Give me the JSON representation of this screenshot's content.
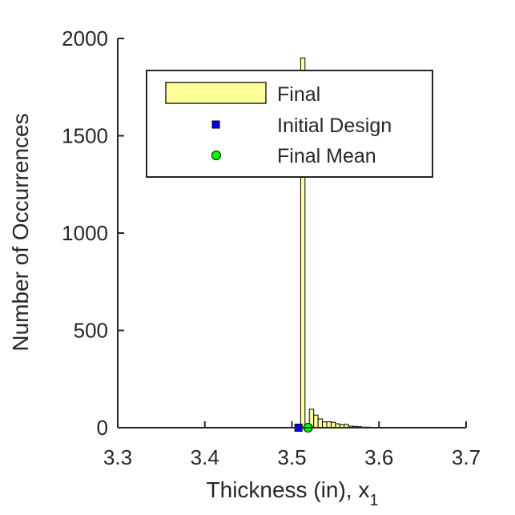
{
  "chart_data": {
    "type": "bar",
    "title": "",
    "xlabel": "Thickness (in), x",
    "xlabel_subscript": "1",
    "ylabel": "Number of Occurrences",
    "xlim": [
      3.3,
      3.7
    ],
    "ylim": [
      0,
      2000
    ],
    "xticks": [
      "3.3",
      "3.4",
      "3.5",
      "3.6",
      "3.7"
    ],
    "yticks": [
      "0",
      "500",
      "1000",
      "1500",
      "2000"
    ],
    "grid": false,
    "legend_position": "top",
    "bin_width": 0.005,
    "series": [
      {
        "name": "Final",
        "kind": "histogram",
        "color": "#ffff99",
        "edge_color": "#000000",
        "bins": [
          {
            "x": 3.5125,
            "count": 1900
          },
          {
            "x": 3.5175,
            "count": 15
          },
          {
            "x": 3.5225,
            "count": 95
          },
          {
            "x": 3.5275,
            "count": 65
          },
          {
            "x": 3.5325,
            "count": 45
          },
          {
            "x": 3.5375,
            "count": 30
          },
          {
            "x": 3.5425,
            "count": 30
          },
          {
            "x": 3.5475,
            "count": 28
          },
          {
            "x": 3.5525,
            "count": 20
          },
          {
            "x": 3.5575,
            "count": 15
          },
          {
            "x": 3.5625,
            "count": 17
          },
          {
            "x": 3.5675,
            "count": 8
          },
          {
            "x": 3.5725,
            "count": 7
          },
          {
            "x": 3.5775,
            "count": 5
          },
          {
            "x": 3.5825,
            "count": 3
          },
          {
            "x": 3.5875,
            "count": 3
          },
          {
            "x": 3.5925,
            "count": 2
          },
          {
            "x": 3.5975,
            "count": 2
          },
          {
            "x": 3.6025,
            "count": 1
          },
          {
            "x": 3.6075,
            "count": 1
          },
          {
            "x": 3.6125,
            "count": 1
          },
          {
            "x": 3.6175,
            "count": 1
          },
          {
            "x": 3.6225,
            "count": 1
          },
          {
            "x": 3.6275,
            "count": 1
          },
          {
            "x": 3.6325,
            "count": 1
          },
          {
            "x": 3.6375,
            "count": 1
          },
          {
            "x": 3.6425,
            "count": 1
          },
          {
            "x": 3.6475,
            "count": 1
          }
        ]
      },
      {
        "name": "Initial Design",
        "kind": "marker",
        "marker": "square",
        "color": "#0000ff",
        "points": [
          {
            "x": 3.5075,
            "y": 0
          }
        ]
      },
      {
        "name": "Final Mean",
        "kind": "marker",
        "marker": "circle",
        "color": "#00ff00",
        "points": [
          {
            "x": 3.5185,
            "y": 0
          }
        ]
      }
    ]
  }
}
